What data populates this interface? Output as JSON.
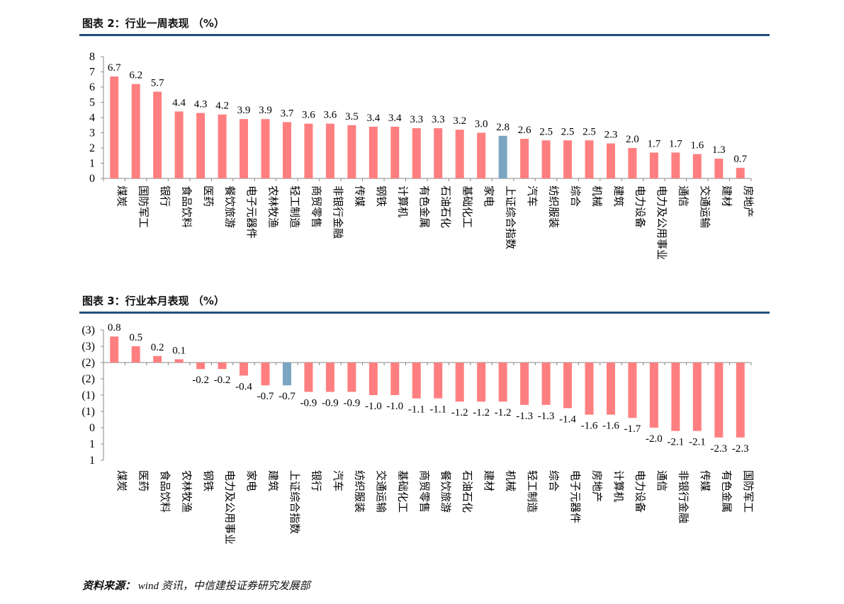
{
  "chart1_title": "图表 2：行业一周表现 （%）",
  "chart2_title": "图表 3：行业本月表现 （%）",
  "source_label": "资料来源：",
  "source_text": "wind 资讯，中信建投证券研究发展部",
  "colors": {
    "bar": "#ff7f80",
    "highlight": "#7aa6c2",
    "rule": "#1f4e79",
    "negative_tick": "#c00000"
  },
  "chart_data": [
    {
      "type": "bar",
      "title": "图表 2：行业一周表现 （%）",
      "ylim": [
        0,
        8
      ],
      "yticks": [
        "0",
        "1",
        "2",
        "3",
        "4",
        "5",
        "6",
        "7",
        "8"
      ],
      "highlight": "上证综合指数",
      "categories": [
        "煤炭",
        "国防军工",
        "银行",
        "食品饮料",
        "医药",
        "餐饮旅游",
        "电子元器件",
        "农林牧渔",
        "轻工制造",
        "商贸零售",
        "非银行金融",
        "传媒",
        "钢铁",
        "计算机",
        "有色金属",
        "石油石化",
        "基础化工",
        "家电",
        "上证综合指数",
        "汽车",
        "纺织服装",
        "综合",
        "机械",
        "建筑",
        "电力设备",
        "电力及公用事业",
        "通信",
        "交通运输",
        "建材",
        "房地产"
      ],
      "values": [
        6.7,
        6.2,
        5.7,
        4.4,
        4.3,
        4.2,
        3.9,
        3.9,
        3.7,
        3.6,
        3.6,
        3.5,
        3.4,
        3.4,
        3.3,
        3.3,
        3.2,
        3.0,
        2.8,
        2.6,
        2.5,
        2.5,
        2.5,
        2.3,
        2.0,
        1.7,
        1.7,
        1.6,
        1.3,
        0.7
      ],
      "value_labels": [
        "6.7",
        "6.2",
        "5.7",
        "4.4",
        "4.3",
        "4.2",
        "3.9",
        "3.9",
        "3.7",
        "3.6",
        "3.6",
        "3.5",
        "3.4",
        "3.4",
        "3.3",
        "3.3",
        "3.2",
        "3.0",
        "2.8",
        "2.6",
        "2.5",
        "2.5",
        "2.5",
        "2.3",
        "2.0",
        "1.7",
        "1.7",
        "1.6",
        "1.3",
        "0.7"
      ]
    },
    {
      "type": "bar",
      "title": "图表 3：行业本月表现 （%）",
      "ylim": [
        -3,
        1
      ],
      "yticks": [
        "1",
        "1",
        "0",
        "(1)",
        "(1)",
        "(2)",
        "(2)",
        "(3)",
        "(3)"
      ],
      "highlight": "上证综合指数",
      "categories": [
        "煤炭",
        "医药",
        "食品饮料",
        "农林牧渔",
        "钢铁",
        "电力及公用事业",
        "家电",
        "建筑",
        "上证综合指数",
        "银行",
        "汽车",
        "纺织服装",
        "交通运输",
        "基础化工",
        "商贸零售",
        "餐饮旅游",
        "石油石化",
        "建材",
        "机械",
        "轻工制造",
        "综合",
        "电子元器件",
        "房地产",
        "计算机",
        "电力设备",
        "通信",
        "非银行金融",
        "传媒",
        "有色金属",
        "国防军工"
      ],
      "values": [
        0.8,
        0.5,
        0.2,
        0.1,
        -0.2,
        -0.2,
        -0.4,
        -0.7,
        -0.7,
        -0.9,
        -0.9,
        -0.9,
        -1.0,
        -1.0,
        -1.1,
        -1.1,
        -1.2,
        -1.2,
        -1.2,
        -1.3,
        -1.3,
        -1.4,
        -1.6,
        -1.6,
        -1.7,
        -2.0,
        -2.1,
        -2.1,
        -2.3,
        -2.3
      ],
      "value_labels": [
        "0.8",
        "0.5",
        "0.2",
        "0.1",
        "-0.2",
        "-0.2",
        "-0.4",
        "-0.7",
        "-0.7",
        "-0.9",
        "-0.9",
        "-0.9",
        "-1.0",
        "-1.0",
        "-1.1",
        "-1.1",
        "-1.2",
        "-1.2",
        "-1.2",
        "-1.3",
        "-1.3",
        "-1.4",
        "-1.6",
        "-1.6",
        "-1.7",
        "-2.0",
        "-2.1",
        "-2.1",
        "-2.3",
        "-2.3"
      ]
    }
  ]
}
